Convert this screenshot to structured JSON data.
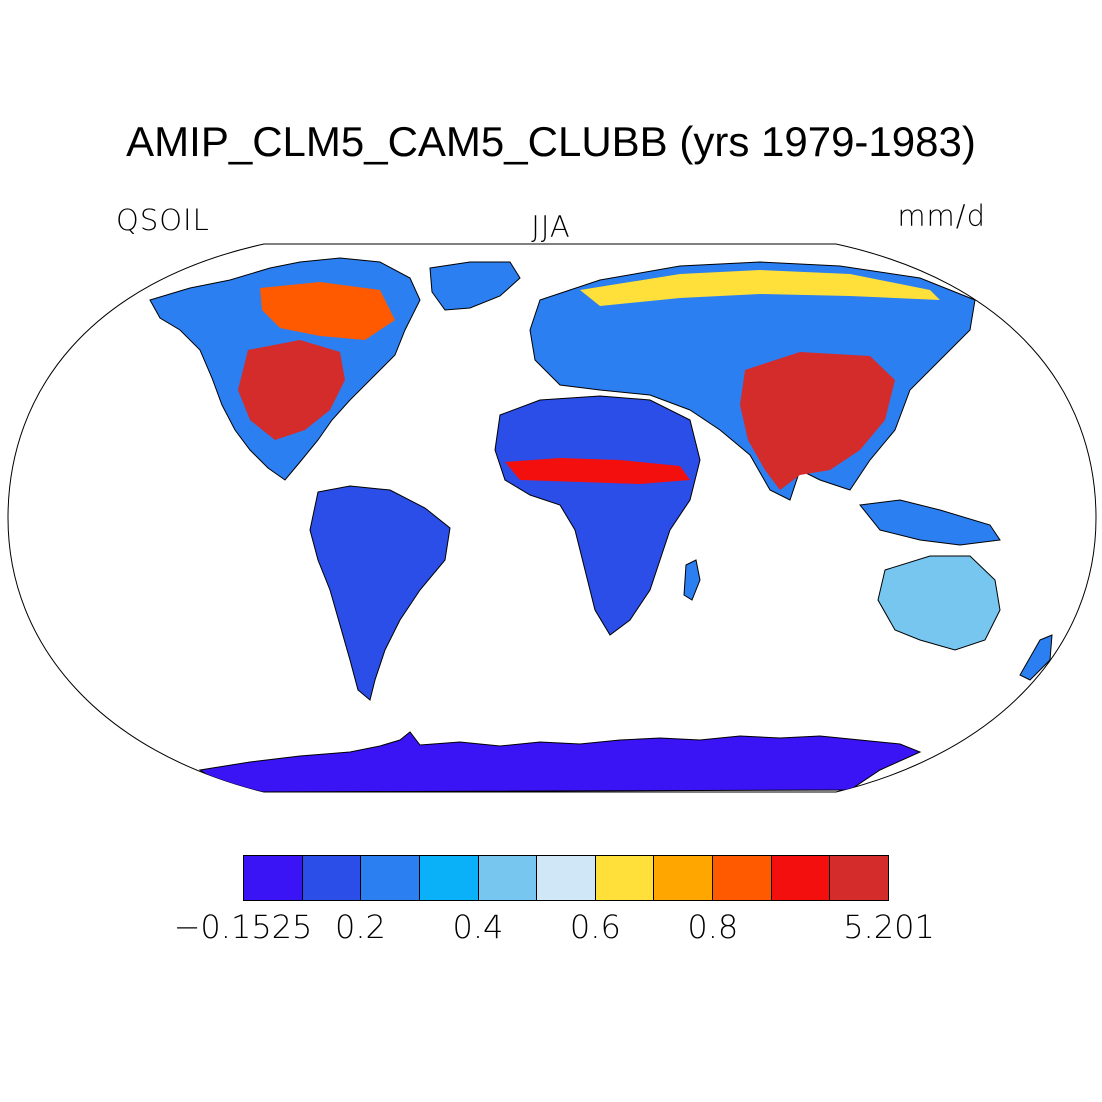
{
  "title": "AMIP_CLM5_CAM5_CLUBB (yrs 1979-1983)",
  "subtitle_left": "QSOIL",
  "subtitle_center": "JJA",
  "subtitle_right": "mm/d",
  "colorbar": {
    "colors": [
      "#3a14f5",
      "#2b4de8",
      "#2b7ff0",
      "#0ab0f8",
      "#76c6ef",
      "#cfe7f6",
      "#ffe03a",
      "#ffa600",
      "#ff5a00",
      "#f40f0f",
      "#d42b2b"
    ],
    "tick_labels": [
      "−0.1525",
      "0.2",
      "0.4",
      "0.6",
      "0.8",
      "5.201"
    ]
  },
  "map": {
    "projection": "Robinson",
    "variable": "QSOIL",
    "regions": [
      {
        "name": "Antarctica",
        "level": 0
      },
      {
        "name": "North Africa / Sahara",
        "level": 1
      },
      {
        "name": "Sahel band",
        "level": 9
      },
      {
        "name": "Central/Southern Africa",
        "level": 1
      },
      {
        "name": "Amazon / South America",
        "level": 1
      },
      {
        "name": "Eastern United States",
        "level": 10
      },
      {
        "name": "Canada",
        "level": 8
      },
      {
        "name": "India / China",
        "level": 10
      },
      {
        "name": "Northern Eurasia",
        "level": 2
      },
      {
        "name": "Australia",
        "level": 3
      },
      {
        "name": "Greenland",
        "level": 2
      }
    ]
  }
}
